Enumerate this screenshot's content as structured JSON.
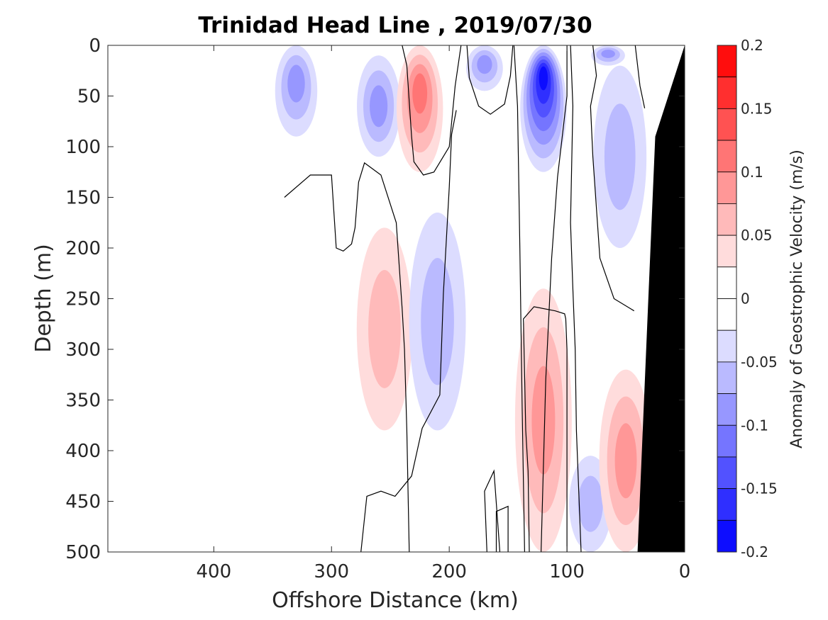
{
  "chart_data": {
    "type": "heatmap",
    "title": "Trinidad Head Line , 2019/07/30",
    "xlabel": "Offshore Distance (km)",
    "ylabel": "Depth (m)",
    "colorbar_label": "Anomaly of Geostrophic Velocity (m/s)",
    "xlim": [
      490,
      0
    ],
    "ylim": [
      0,
      500
    ],
    "x_ticks": [
      "400",
      "300",
      "200",
      "100",
      "0"
    ],
    "x_tick_values": [
      400,
      300,
      200,
      100,
      0
    ],
    "y_ticks": [
      "0",
      "50",
      "100",
      "150",
      "200",
      "250",
      "300",
      "350",
      "400",
      "450",
      "500"
    ],
    "y_tick_values": [
      0,
      50,
      100,
      150,
      200,
      250,
      300,
      350,
      400,
      450,
      500
    ],
    "colorbar_ticks": [
      "0.2",
      "0.15",
      "0.1",
      "0.05",
      "0",
      "-0.05",
      "-0.1",
      "-0.15",
      "-0.2"
    ],
    "colorbar_tick_values": [
      0.2,
      0.15,
      0.1,
      0.05,
      0,
      -0.05,
      -0.1,
      -0.15,
      -0.2
    ],
    "contour_levels": [
      -0.2,
      -0.175,
      -0.15,
      -0.125,
      -0.1,
      -0.075,
      -0.05,
      -0.025,
      0.025,
      0.05,
      0.075,
      0.1,
      0.125,
      0.15,
      0.175,
      0.2
    ],
    "features": [
      {
        "sign": "neg",
        "x": 330,
        "y_top": 0,
        "y_bottom": 90,
        "peak": -0.075,
        "note": "weak negative near surface"
      },
      {
        "sign": "neg",
        "x": 260,
        "y_top": 10,
        "y_bottom": 110,
        "peak": -0.075
      },
      {
        "sign": "pos",
        "x": 225,
        "y_top": 0,
        "y_bottom": 125,
        "peak": 0.1
      },
      {
        "sign": "neg",
        "x": 170,
        "y_top": 0,
        "y_bottom": 45,
        "peak": -0.075
      },
      {
        "sign": "neg",
        "x": 120,
        "y_top": 0,
        "y_bottom": 125,
        "peak": -0.175
      },
      {
        "sign": "neg",
        "x": 65,
        "y_top": 0,
        "y_bottom": 20,
        "peak": -0.075
      },
      {
        "sign": "neg",
        "x": 55,
        "y_top": 20,
        "y_bottom": 200,
        "peak": -0.05
      },
      {
        "sign": "pos",
        "x": 255,
        "y_top": 180,
        "y_bottom": 380,
        "peak": 0.05
      },
      {
        "sign": "neg",
        "x": 210,
        "y_top": 165,
        "y_bottom": 380,
        "peak": -0.05
      },
      {
        "sign": "pos",
        "x": 120,
        "y_top": 240,
        "y_bottom": 500,
        "peak": 0.075
      },
      {
        "sign": "neg",
        "x": 80,
        "y_top": 405,
        "y_bottom": 500,
        "peak": -0.05
      },
      {
        "sign": "pos",
        "x": 50,
        "y_top": 320,
        "y_bottom": 500,
        "peak": 0.075
      }
    ],
    "bathymetry": [
      [
        0,
        0
      ],
      [
        25,
        90
      ],
      [
        40,
        500
      ]
    ],
    "bathymetry_color": "#000000",
    "colormap": {
      "positive_max": "#ff0000",
      "negative_max": "#0000ff",
      "zero": "#ffffff"
    },
    "grid": false
  }
}
